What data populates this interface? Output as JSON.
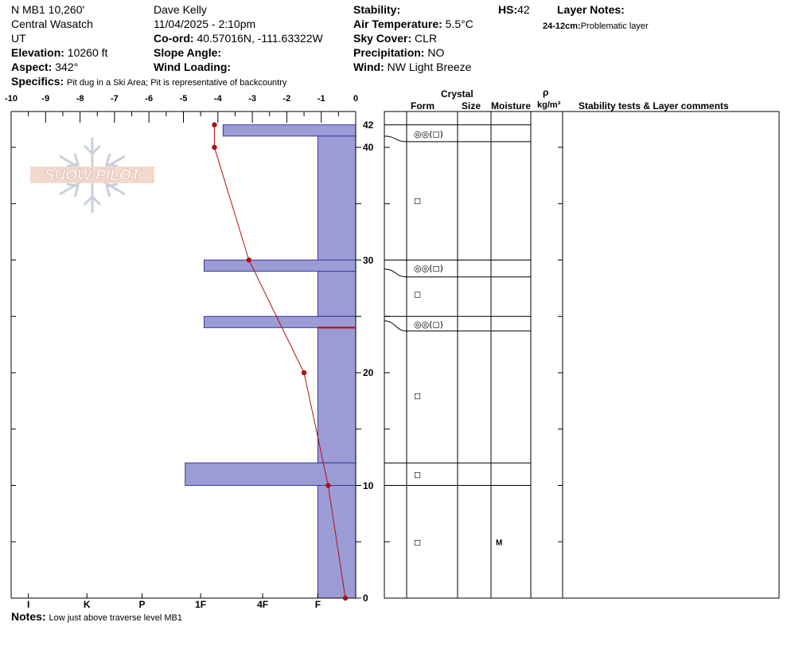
{
  "header": {
    "location": "N MB1 10,260'",
    "range": "Central Wasatch",
    "state": "UT",
    "elevation_label": "Elevation:",
    "elevation_value": "10260 ft",
    "aspect_label": "Aspect:",
    "aspect_value": "342°",
    "specifics_label": "Specifics:",
    "specifics_value": "Pit dug in a Ski Area; Pit is representative of backcountry",
    "observer": "Dave Kelly",
    "datetime": "11/04/2025 - 2:10pm",
    "coord_label": "Co-ord:",
    "coord_value": "40.57016N, -111.63322W",
    "slope_label": "Slope Angle:",
    "slope_value": "",
    "wind_loading_label": "Wind Loading:",
    "wind_loading_value": "",
    "stability_label": "Stability:",
    "stability_value": "",
    "air_temp_label": "Air Temperature:",
    "air_temp_value": "5.5°C",
    "sky_label": "Sky Cover:",
    "sky_value": "CLR",
    "precip_label": "Precipitation:",
    "precip_value": "NO",
    "wind_label": "Wind:",
    "wind_value": "NW Light Breeze",
    "hs_label": "HS:",
    "hs_value": "42",
    "layer_notes_label": "Layer Notes:",
    "layer_note_range": "24-12cm:",
    "layer_note_text": "Problematic layer"
  },
  "logo": {
    "text": "SNOW PILOT"
  },
  "notes": {
    "label": "Notes:",
    "value": "Low just above traverse level MB1"
  },
  "table_headers": {
    "crystal": "Crystal",
    "form": "Form",
    "size": "Size",
    "moisture": "Moisture",
    "rho": "ρ",
    "density_unit": "kg/m³",
    "stability_tests": "Stability tests & Layer comments"
  },
  "colors": {
    "hardness_bar": "#9b9bd6",
    "temp_line": "#b01010",
    "marker_line": "#c00000"
  },
  "chart_data": {
    "type": "snow-profile",
    "depth_axis": {
      "range": [
        0,
        42
      ],
      "labels": [
        42,
        40,
        30,
        20,
        10,
        0
      ],
      "unit": "cm"
    },
    "temperature_axis": {
      "range": [
        -10,
        0
      ],
      "labels": [
        "-10",
        "-9",
        "-8",
        "-7",
        "-6",
        "-5",
        "-4",
        "-3",
        "-2",
        "-1",
        "0"
      ]
    },
    "hardness_axis": {
      "labels": [
        "I",
        "K",
        "P",
        "1F",
        "4F",
        "F"
      ],
      "positions": [
        -9.5,
        -7.8,
        -6.2,
        -4.5,
        -2.7,
        -1.1
      ]
    },
    "temperature_profile": [
      {
        "depth": 42,
        "temp": -4.1
      },
      {
        "depth": 40,
        "temp": -4.1
      },
      {
        "depth": 30,
        "temp": -3.1
      },
      {
        "depth": 20,
        "temp": -1.5
      },
      {
        "depth": 10,
        "temp": -0.8
      },
      {
        "depth": 0,
        "temp": -0.3
      }
    ],
    "hardness_layers": [
      {
        "top": 42,
        "bottom": 41,
        "extent": -3.85
      },
      {
        "top": 41,
        "bottom": 30,
        "extent": -1.1
      },
      {
        "top": 30,
        "bottom": 29,
        "extent": -4.4
      },
      {
        "top": 29,
        "bottom": 25,
        "extent": -1.1
      },
      {
        "top": 25,
        "bottom": 24,
        "extent": -4.4
      },
      {
        "top": 24,
        "bottom": 12,
        "extent": -1.1
      },
      {
        "top": 12,
        "bottom": 10,
        "extent": -4.95
      },
      {
        "top": 10,
        "bottom": 0,
        "extent": -1.1
      }
    ],
    "problem_marker_depth": 24,
    "layer_boundaries": [
      42,
      40.5,
      30,
      28.5,
      25,
      23.7,
      12,
      10
    ],
    "table_rows": [
      {
        "depth": 41.2,
        "form": "◎◎(◻)",
        "moisture": ""
      },
      {
        "depth": 35.3,
        "form": "◻",
        "moisture": ""
      },
      {
        "depth": 29.3,
        "form": "◎◎(◻)",
        "moisture": ""
      },
      {
        "depth": 27,
        "form": "◻",
        "moisture": ""
      },
      {
        "depth": 24.3,
        "form": "◎◎(◻)",
        "moisture": ""
      },
      {
        "depth": 18,
        "form": "◻",
        "moisture": ""
      },
      {
        "depth": 11,
        "form": "◻",
        "moisture": ""
      },
      {
        "depth": 5,
        "form": "◻",
        "moisture": "M"
      }
    ]
  }
}
